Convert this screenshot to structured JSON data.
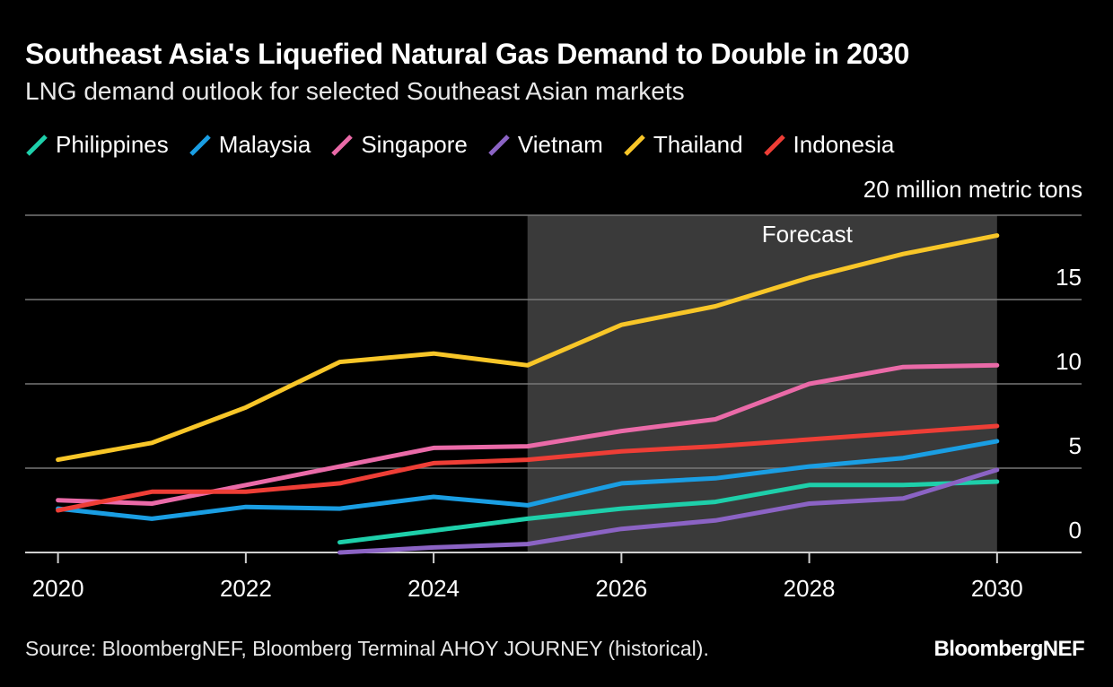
{
  "header": {
    "title": "Southeast Asia's Liquefied Natural Gas Demand to Double in 2030",
    "subtitle": "LNG demand outlook for selected Southeast Asian markets"
  },
  "footer": {
    "source": "Source: BloombergNEF, Bloomberg Terminal AHOY JOURNEY (historical).",
    "brand": "BloombergNEF"
  },
  "colors": {
    "background": "#000000",
    "forecast_band": "#3a3a3a",
    "gridline": "#777777",
    "Philippines": "#1ecfaa",
    "Malaysia": "#1a9ee3",
    "Singapore": "#ea6aa8",
    "Vietnam": "#8b63c4",
    "Thailand": "#f8c628",
    "Indonesia": "#ee3e36"
  },
  "chart_data": {
    "type": "line",
    "title": "Southeast Asia's Liquefied Natural Gas Demand to Double in 2030",
    "subtitle": "LNG demand outlook for selected Southeast Asian markets",
    "unit_label": "20 million metric tons",
    "xlabel": "",
    "ylabel": "million metric tons",
    "xlim": [
      2019.65,
      2030.9
    ],
    "ylim": [
      0,
      20
    ],
    "x_ticks": [
      2020,
      2022,
      2024,
      2026,
      2028,
      2030
    ],
    "y_ticks": [
      0,
      5,
      10,
      15,
      20
    ],
    "y_tick_labels": [
      "0",
      "5",
      "10",
      "15",
      ""
    ],
    "grid": true,
    "legend": "top-left",
    "forecast": {
      "label": "Forecast",
      "start": 2025,
      "end": 2030
    },
    "series": [
      {
        "name": "Philippines",
        "x": [
          2023,
          2024,
          2025,
          2026,
          2027,
          2028,
          2029,
          2030
        ],
        "values": [
          0.6,
          1.3,
          2.0,
          2.6,
          3.0,
          4.0,
          4.0,
          4.2
        ]
      },
      {
        "name": "Malaysia",
        "x": [
          2020,
          2021,
          2022,
          2023,
          2024,
          2025,
          2026,
          2027,
          2028,
          2029,
          2030
        ],
        "values": [
          2.6,
          2.0,
          2.7,
          2.6,
          3.3,
          2.8,
          4.1,
          4.4,
          5.1,
          5.6,
          6.6
        ]
      },
      {
        "name": "Singapore",
        "x": [
          2020,
          2021,
          2022,
          2023,
          2024,
          2025,
          2026,
          2027,
          2028,
          2029,
          2030
        ],
        "values": [
          3.1,
          2.9,
          4.0,
          5.1,
          6.2,
          6.3,
          7.2,
          7.9,
          10.0,
          11.0,
          11.1
        ]
      },
      {
        "name": "Vietnam",
        "x": [
          2023,
          2024,
          2025,
          2026,
          2027,
          2028,
          2029,
          2030
        ],
        "values": [
          0.0,
          0.3,
          0.5,
          1.4,
          1.9,
          2.9,
          3.2,
          4.9
        ]
      },
      {
        "name": "Thailand",
        "x": [
          2020,
          2021,
          2022,
          2023,
          2024,
          2025,
          2026,
          2027,
          2028,
          2029,
          2030
        ],
        "values": [
          5.5,
          6.5,
          8.6,
          11.3,
          11.8,
          11.1,
          13.5,
          14.6,
          16.3,
          17.7,
          18.8
        ]
      },
      {
        "name": "Indonesia",
        "x": [
          2020,
          2021,
          2022,
          2023,
          2024,
          2025,
          2026,
          2027,
          2028,
          2029,
          2030
        ],
        "values": [
          2.5,
          3.6,
          3.6,
          4.1,
          5.3,
          5.5,
          6.0,
          6.3,
          6.7,
          7.1,
          7.5
        ]
      }
    ]
  }
}
